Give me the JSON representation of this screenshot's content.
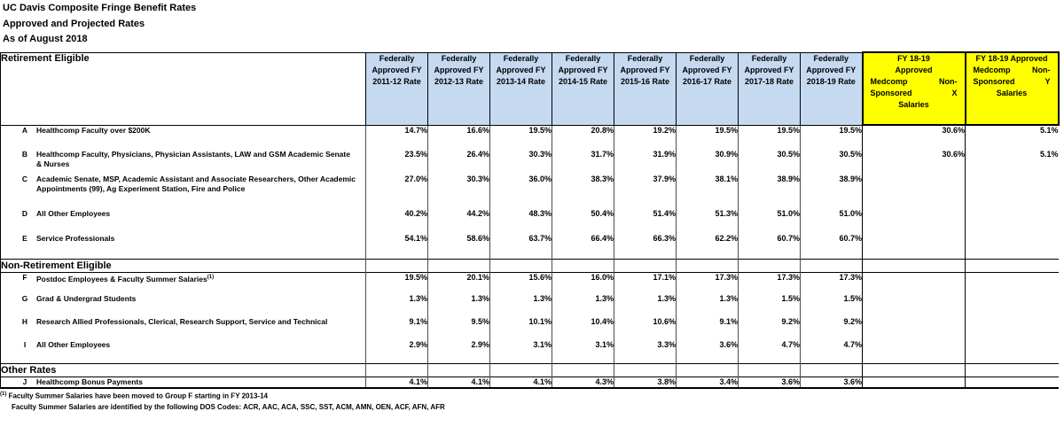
{
  "title": {
    "line1": "UC Davis Composite Fringe Benefit Rates",
    "line2": "Approved and Projected Rates",
    "line3": "As of August 2018"
  },
  "table": {
    "header": {
      "first_column_label": "Retirement Eligible",
      "columns": [
        {
          "style": "blue",
          "lines": [
            "Federally",
            "Approved FY",
            "2011-12 Rate"
          ]
        },
        {
          "style": "blue",
          "lines": [
            "Federally",
            "Approved FY",
            "2012-13 Rate"
          ]
        },
        {
          "style": "blue",
          "lines": [
            "Federally",
            "Approved FY",
            "2013-14 Rate"
          ]
        },
        {
          "style": "blue",
          "lines": [
            "Federally",
            "Approved FY",
            "2014-15 Rate"
          ]
        },
        {
          "style": "blue",
          "lines": [
            "Federally",
            "Approved FY",
            "2015-16 Rate"
          ]
        },
        {
          "style": "blue",
          "lines": [
            "Federally",
            "Approved FY",
            "2016-17 Rate"
          ]
        },
        {
          "style": "blue",
          "lines": [
            "Federally",
            "Approved FY",
            "2017-18 Rate"
          ]
        },
        {
          "style": "blue",
          "lines": [
            "Federally",
            "Approved FY",
            "2018-19 Rate"
          ]
        },
        {
          "style": "yellow",
          "lines": [
            "FY 18-19",
            "Approved",
            [
              "Medcomp",
              "Non-"
            ],
            [
              "Sponsored",
              "X"
            ],
            "Salaries"
          ]
        },
        {
          "style": "yellow",
          "lines": [
            "FY 18-19 Approved",
            [
              "Medcomp",
              "Non-"
            ],
            [
              "Sponsored",
              "Y"
            ],
            "Salaries"
          ]
        }
      ]
    },
    "sections": [
      {
        "label": "",
        "rows": [
          {
            "letter": "A",
            "label": "Healthcomp Faculty over $200K",
            "sup": "",
            "values": [
              "14.7%",
              "16.6%",
              "19.5%",
              "20.8%",
              "19.2%",
              "19.5%",
              "19.5%",
              "19.5%",
              "30.6%",
              "5.1%"
            ]
          },
          {
            "letter": "B",
            "label": "Healthcomp Faculty, Physicians, Physician Assistants, LAW and GSM Academic Senate & Nurses",
            "sup": "",
            "values": [
              "23.5%",
              "26.4%",
              "30.3%",
              "31.7%",
              "31.9%",
              "30.9%",
              "30.5%",
              "30.5%",
              "30.6%",
              "5.1%"
            ]
          },
          {
            "letter": "C",
            "label": "Academic Senate, MSP, Academic Assistant and Associate Researchers, Other Academic Appointments (99), Ag Experiment Station, Fire and Police",
            "sup": "",
            "values": [
              "27.0%",
              "30.3%",
              "36.0%",
              "38.3%",
              "37.9%",
              "38.1%",
              "38.9%",
              "38.9%",
              "",
              ""
            ]
          },
          {
            "letter": "D",
            "label": "All Other Employees",
            "sup": "",
            "values": [
              "40.2%",
              "44.2%",
              "48.3%",
              "50.4%",
              "51.4%",
              "51.3%",
              "51.0%",
              "51.0%",
              "",
              ""
            ]
          },
          {
            "letter": "E",
            "label": "Service Professionals",
            "sup": "",
            "values": [
              "54.1%",
              "58.6%",
              "63.7%",
              "66.4%",
              "66.3%",
              "62.2%",
              "60.7%",
              "60.7%",
              "",
              ""
            ]
          }
        ]
      },
      {
        "label": "Non-Retirement Eligible",
        "rows": [
          {
            "letter": "F",
            "label": "Postdoc Employees & Faculty Summer Salaries",
            "sup": "(1)",
            "values": [
              "19.5%",
              "20.1%",
              "15.6%",
              "16.0%",
              "17.1%",
              "17.3%",
              "17.3%",
              "17.3%",
              "",
              ""
            ]
          },
          {
            "letter": "G",
            "label": "Grad & Undergrad Students",
            "sup": "",
            "values": [
              "1.3%",
              "1.3%",
              "1.3%",
              "1.3%",
              "1.3%",
              "1.3%",
              "1.5%",
              "1.5%",
              "",
              ""
            ]
          },
          {
            "letter": "H",
            "label": "Research Allied Professionals, Clerical, Research Support, Service and Technical",
            "sup": "",
            "values": [
              "9.1%",
              "9.5%",
              "10.1%",
              "10.4%",
              "10.6%",
              "9.1%",
              "9.2%",
              "9.2%",
              "",
              ""
            ]
          },
          {
            "letter": "I",
            "label": "All Other Employees",
            "sup": "",
            "values": [
              "2.9%",
              "2.9%",
              "3.1%",
              "3.1%",
              "3.3%",
              "3.6%",
              "4.7%",
              "4.7%",
              "",
              ""
            ]
          }
        ]
      },
      {
        "label": "Other Rates",
        "rows": [
          {
            "letter": "J",
            "label": "Healthcomp Bonus Payments",
            "sup": "",
            "values": [
              "4.1%",
              "4.1%",
              "4.1%",
              "4.3%",
              "3.8%",
              "3.4%",
              "3.6%",
              "3.6%",
              "",
              ""
            ]
          }
        ]
      }
    ]
  },
  "footnotes": {
    "marker": "(1)",
    "line1": "Faculty Summer Salaries have been moved to Group F starting in FY 2013-14",
    "line2": "Faculty Summer Salaries are identified by the following DOS Codes:  ACR, AAC, ACA, SSC, SST, ACM, AMN, OEN, ACF, AFN, AFR"
  }
}
